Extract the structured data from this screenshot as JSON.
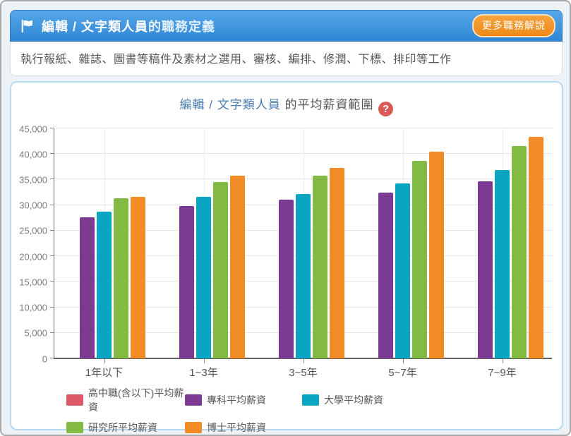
{
  "header": {
    "title_main": "編輯 / 文字類人員",
    "title_suffix": "的職務定義",
    "more_button_label": "更多職務解說"
  },
  "description_text": "執行報紙、雜誌、圖書等稿件及素材之選用、審核、編排、修潤、下標、排印等工作",
  "chart_header": {
    "title_link": "編輯 / 文字類人員",
    "title_suffix": " 的平均薪資範圍",
    "help_icon_glyph": "?"
  },
  "colors": {
    "header_blue": "#3b95dc",
    "panel_border_blue": "#b9d9f1",
    "button_orange": "#f0911f",
    "help_red": "#dc5a55",
    "title_link_blue": "#4b7cb1",
    "text_gray": "#555555"
  },
  "chart_data": {
    "type": "bar",
    "title": "編輯 / 文字類人員 的平均薪資範圍",
    "categories": [
      "1年以下",
      "1~3年",
      "3~5年",
      "5~7年",
      "7~9年"
    ],
    "series": [
      {
        "name": "高中職(含以下)平均薪資",
        "color": "#dd5868",
        "values": [
          null,
          null,
          null,
          null,
          null
        ]
      },
      {
        "name": "專科平均薪資",
        "color": "#7d3a92",
        "values": [
          27600,
          29800,
          31100,
          32500,
          34600
        ]
      },
      {
        "name": "大學平均薪資",
        "color": "#09a6c4",
        "values": [
          28700,
          31600,
          32100,
          34200,
          36900
        ]
      },
      {
        "name": "研究所平均薪資",
        "color": "#82ba44",
        "values": [
          31300,
          34500,
          35700,
          38700,
          41500
        ]
      },
      {
        "name": "博士平均薪資",
        "color": "#f08b25",
        "values": [
          31600,
          35700,
          37300,
          40500,
          43400
        ]
      }
    ],
    "xlabel": "",
    "ylabel": "",
    "ylim": [
      0,
      45000
    ],
    "ytick_step": 5000,
    "grid": true,
    "legend_position": "bottom"
  }
}
